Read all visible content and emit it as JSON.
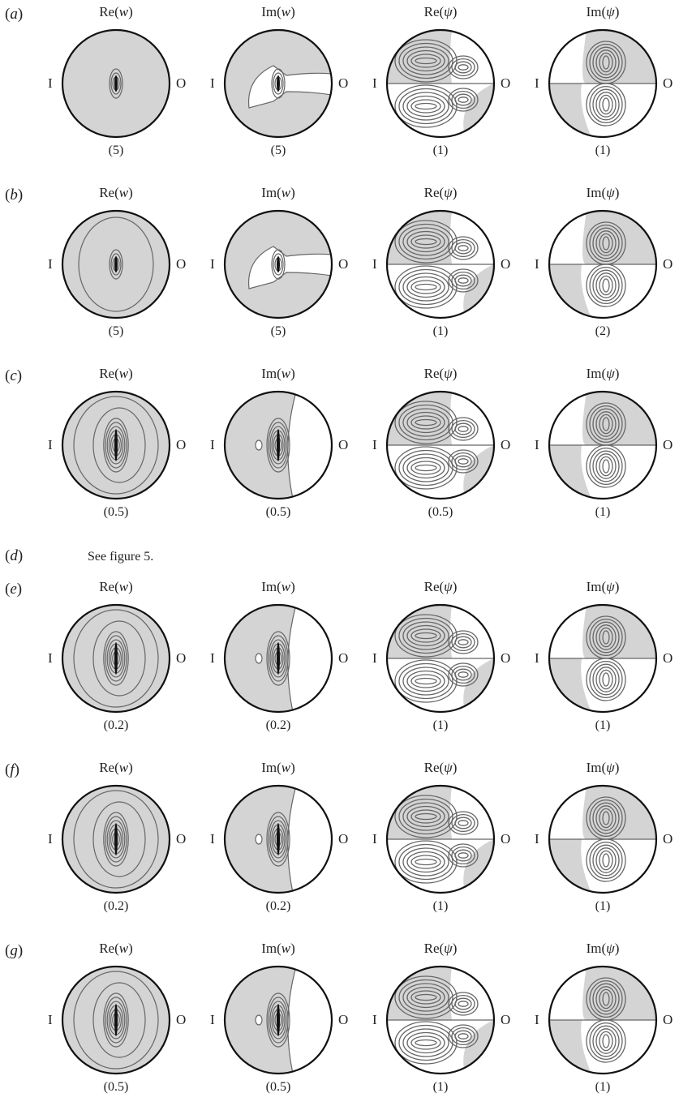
{
  "column_titles": [
    {
      "fn": "Re(",
      "var": "w",
      "close": ")"
    },
    {
      "fn": "Im(",
      "var": "w",
      "close": ")"
    },
    {
      "fn": "Re(",
      "var": "ψ",
      "close": ")"
    },
    {
      "fn": "Im(",
      "var": "ψ",
      "close": ")"
    }
  ],
  "side_labels": {
    "inner": "I",
    "outer": "O"
  },
  "rows": [
    {
      "label": "a",
      "scales": [
        "(5)",
        "(5)",
        "(1)",
        "(1)"
      ]
    },
    {
      "label": "b",
      "scales": [
        "(5)",
        "(5)",
        "(1)",
        "(2)"
      ]
    },
    {
      "label": "c",
      "scales": [
        "(0.5)",
        "(0.5)",
        "(0.5)",
        "(1)"
      ]
    },
    {
      "label": "d",
      "note": "See figure 5."
    },
    {
      "label": "e",
      "scales": [
        "(0.2)",
        "(0.2)",
        "(1)",
        "(1)"
      ]
    },
    {
      "label": "f",
      "scales": [
        "(0.2)",
        "(0.2)",
        "(1)",
        "(1)"
      ]
    },
    {
      "label": "g",
      "scales": [
        "(0.5)",
        "(0.5)",
        "(1)",
        "(1)"
      ]
    }
  ],
  "colors": {
    "shade": "#d4d4d4",
    "contour": "#666666",
    "rim": "#111111"
  }
}
